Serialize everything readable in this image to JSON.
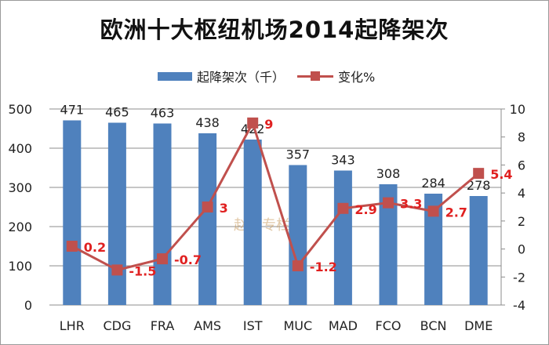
{
  "chart_data": {
    "type": "bar",
    "title": "欧洲十大枢纽机场2014起降架次",
    "categories": [
      "LHR",
      "CDG",
      "FRA",
      "AMS",
      "IST",
      "MUC",
      "MAD",
      "FCO",
      "BCN",
      "DME"
    ],
    "series": [
      {
        "name": "起降架次（千）",
        "type": "bar",
        "axis": "left",
        "color": "#4f81bd",
        "values": [
          471,
          465,
          463,
          438,
          422,
          357,
          343,
          308,
          284,
          278
        ],
        "labels": [
          "471",
          "465",
          "463",
          "438",
          "422",
          "357",
          "343",
          "308",
          "284",
          "278"
        ]
      },
      {
        "name": "变化%",
        "type": "line",
        "axis": "right",
        "color": "#c0504d",
        "values": [
          0.2,
          -1.5,
          -0.7,
          3,
          9,
          -1.2,
          2.9,
          3.3,
          2.7,
          5.4
        ],
        "labels": [
          "0.2",
          "-1.5",
          "-0.7",
          "3",
          "9",
          "-1.2",
          "2.9",
          "3.3",
          "2.7",
          "5.4"
        ]
      }
    ],
    "y_left": {
      "lim": [
        0,
        500
      ],
      "ticks": [
        "0",
        "100",
        "200",
        "300",
        "400",
        "500"
      ]
    },
    "y_right": {
      "lim": [
        -4,
        10
      ],
      "ticks": [
        "-4",
        "-2",
        "0",
        "2",
        "4",
        "6",
        "8",
        "10"
      ]
    },
    "grid": true,
    "legend_position": "top"
  },
  "watermark": "赵巍专栏"
}
